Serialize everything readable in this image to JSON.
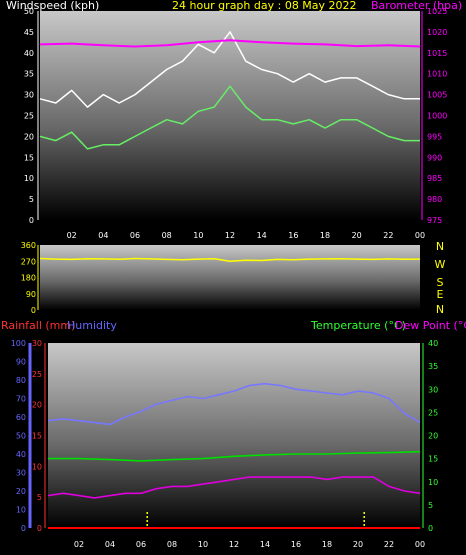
{
  "header": {
    "windspeed_label": "Windspeed (kph)",
    "title": "24 hour graph day : 08 May 2022",
    "barometer_label": "Barometer (hpa)"
  },
  "lower_header": {
    "rainfall_label": "Rainfall (mm)",
    "humidity_label": "Humidity",
    "temperature_label": "Temperature (°C)",
    "dewpoint_label": "Dew Point (°C)"
  },
  "direction_labels": [
    "N",
    "W",
    "S",
    "E",
    "N"
  ],
  "colors": {
    "gust": "#ffffff",
    "windspeed": "#66ee66",
    "barometer": "#ff00ff",
    "direction": "#ffff00",
    "humidity": "#7777ff",
    "temperature": "#00dd00",
    "dewpoint": "#dd00dd",
    "rainfall": "#ff0000",
    "sun": "#ffff00",
    "axis_wind": "#ffffff",
    "axis_baro": "#ff00ff",
    "axis_hum": "#6666ff",
    "axis_rain": "#ff3333",
    "axis_temp": "#33ff33"
  },
  "chart_data": [
    {
      "type": "line",
      "title": "24 hour graph day : 08 May 2022",
      "x_tick_labels": [
        "02",
        "04",
        "06",
        "08",
        "10",
        "12",
        "14",
        "16",
        "18",
        "20",
        "22",
        "00"
      ],
      "ylabel_left": "Windspeed (kph)",
      "ylim_left": [
        0,
        50
      ],
      "yticks_left": [
        0,
        5,
        10,
        15,
        20,
        25,
        30,
        35,
        40,
        45,
        50
      ],
      "ylabel_right": "Barometer (hpa)",
      "ylim_right": [
        975,
        1025
      ],
      "yticks_right": [
        975,
        980,
        985,
        990,
        995,
        1000,
        1005,
        1010,
        1015,
        1020,
        1025
      ],
      "series": [
        {
          "key": "gust",
          "axis": "left",
          "x": [
            0,
            1,
            2,
            3,
            4,
            5,
            6,
            7,
            8,
            9,
            10,
            11,
            12,
            13,
            14,
            15,
            16,
            17,
            18,
            19,
            20,
            21,
            22,
            23,
            24
          ],
          "values": [
            29,
            28,
            31,
            27,
            30,
            28,
            30,
            33,
            36,
            38,
            42,
            40,
            45,
            38,
            36,
            35,
            33,
            35,
            33,
            34,
            34,
            32,
            30,
            29,
            29
          ]
        },
        {
          "key": "windspeed",
          "axis": "left",
          "x": [
            0,
            1,
            2,
            3,
            4,
            5,
            6,
            7,
            8,
            9,
            10,
            11,
            12,
            13,
            14,
            15,
            16,
            17,
            18,
            19,
            20,
            21,
            22,
            23,
            24
          ],
          "values": [
            20,
            19,
            21,
            17,
            18,
            18,
            20,
            22,
            24,
            23,
            26,
            27,
            32,
            27,
            24,
            24,
            23,
            24,
            22,
            24,
            24,
            22,
            20,
            19,
            19
          ]
        },
        {
          "key": "barometer",
          "axis": "right",
          "x": [
            0,
            2,
            4,
            6,
            8,
            10,
            12,
            14,
            16,
            18,
            20,
            22,
            24
          ],
          "values": [
            1017,
            1017.2,
            1016.8,
            1016.5,
            1016.8,
            1017.5,
            1018,
            1017.5,
            1017.2,
            1017,
            1016.6,
            1016.8,
            1016.5
          ]
        }
      ]
    },
    {
      "type": "line",
      "x_tick_labels": [
        "02",
        "04",
        "06",
        "08",
        "10",
        "12",
        "14",
        "16",
        "18",
        "20",
        "22",
        "00"
      ],
      "ylim": [
        0,
        360
      ],
      "yticks": [
        0,
        90,
        180,
        270,
        360
      ],
      "series": [
        {
          "key": "direction",
          "x": [
            0,
            1,
            2,
            3,
            4,
            5,
            6,
            7,
            8,
            9,
            10,
            11,
            12,
            13,
            14,
            15,
            16,
            17,
            18,
            19,
            20,
            21,
            22,
            23,
            24
          ],
          "values": [
            285,
            282,
            280,
            284,
            283,
            281,
            285,
            283,
            280,
            278,
            282,
            284,
            270,
            276,
            274,
            280,
            278,
            282,
            283,
            284,
            282,
            280,
            283,
            281,
            282
          ]
        }
      ]
    },
    {
      "type": "line",
      "x_tick_labels": [
        "02",
        "04",
        "06",
        "08",
        "10",
        "12",
        "14",
        "16",
        "18",
        "20",
        "22",
        "00"
      ],
      "ylabel_humidity": "Humidity",
      "ylim_humidity": [
        0,
        100
      ],
      "yticks_humidity": [
        0,
        10,
        20,
        30,
        40,
        50,
        60,
        70,
        80,
        90,
        100
      ],
      "ylabel_rain": "Rainfall (mm)",
      "ylim_rain": [
        0,
        30
      ],
      "yticks_rain": [
        0,
        5,
        10,
        15,
        20,
        25,
        30
      ],
      "ylabel_temp": "Temperature (°C)",
      "ylim_temp": [
        0,
        40
      ],
      "yticks_temp": [
        0,
        5,
        10,
        15,
        20,
        25,
        30,
        35,
        40
      ],
      "series": [
        {
          "key": "humidity",
          "axis": "humidity",
          "x": [
            0,
            1,
            2,
            3,
            4,
            5,
            6,
            7,
            8,
            9,
            10,
            11,
            12,
            13,
            14,
            15,
            16,
            17,
            18,
            19,
            20,
            21,
            22,
            23,
            24
          ],
          "values": [
            58,
            59,
            58,
            57,
            56,
            60,
            63,
            67,
            69,
            71,
            70,
            72,
            74,
            77,
            78,
            77,
            75,
            74,
            73,
            72,
            74,
            73,
            70,
            62,
            57
          ]
        },
        {
          "key": "temperature",
          "axis": "temp",
          "x": [
            0,
            2,
            4,
            6,
            8,
            10,
            12,
            14,
            16,
            18,
            20,
            22,
            24
          ],
          "values": [
            15,
            15,
            14.8,
            14.5,
            14.8,
            15,
            15.5,
            15.8,
            16,
            16,
            16.2,
            16.3,
            16.5
          ]
        },
        {
          "key": "dewpoint",
          "axis": "temp",
          "x": [
            0,
            1,
            2,
            3,
            4,
            5,
            6,
            7,
            8,
            9,
            10,
            11,
            12,
            13,
            14,
            15,
            16,
            17,
            18,
            19,
            20,
            21,
            22,
            23,
            24
          ],
          "values": [
            7,
            7.5,
            7,
            6.5,
            7,
            7.5,
            7.5,
            8.5,
            9,
            9,
            9.5,
            10,
            10.5,
            11,
            11,
            11,
            11,
            11,
            10.5,
            11,
            11,
            11,
            9,
            8,
            7.5
          ]
        },
        {
          "key": "rainfall",
          "axis": "rain",
          "x": [
            0,
            24
          ],
          "values": [
            0,
            0
          ]
        }
      ],
      "sun_markers_hours": [
        6.4,
        20.4
      ]
    }
  ]
}
